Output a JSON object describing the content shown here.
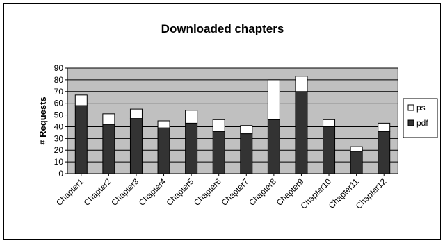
{
  "chart_data": {
    "type": "bar",
    "stacked": true,
    "title": "Downloaded chapters",
    "ylabel": "# Requests",
    "xlabel": "",
    "ylim": [
      0,
      90
    ],
    "ytick_step": 10,
    "grid": true,
    "legend_position": "right",
    "categories": [
      "Chapter1",
      "Chapter2",
      "Chapter3",
      "Chapter4",
      "Chapter5",
      "Chapter6",
      "Chapter7",
      "Chapter8",
      "Chapter9",
      "Chapter10",
      "Chapter11",
      "Chapter12"
    ],
    "series": [
      {
        "name": "pdf",
        "color": "#333333",
        "values": [
          58,
          42,
          47,
          39,
          43,
          36,
          34,
          46,
          70,
          40,
          19,
          36
        ]
      },
      {
        "name": "ps",
        "color": "#ffffff",
        "values": [
          9,
          9,
          8,
          6,
          11,
          10,
          7,
          34,
          13,
          6,
          4,
          7
        ]
      }
    ],
    "plot_background": "#c0c0c0"
  }
}
